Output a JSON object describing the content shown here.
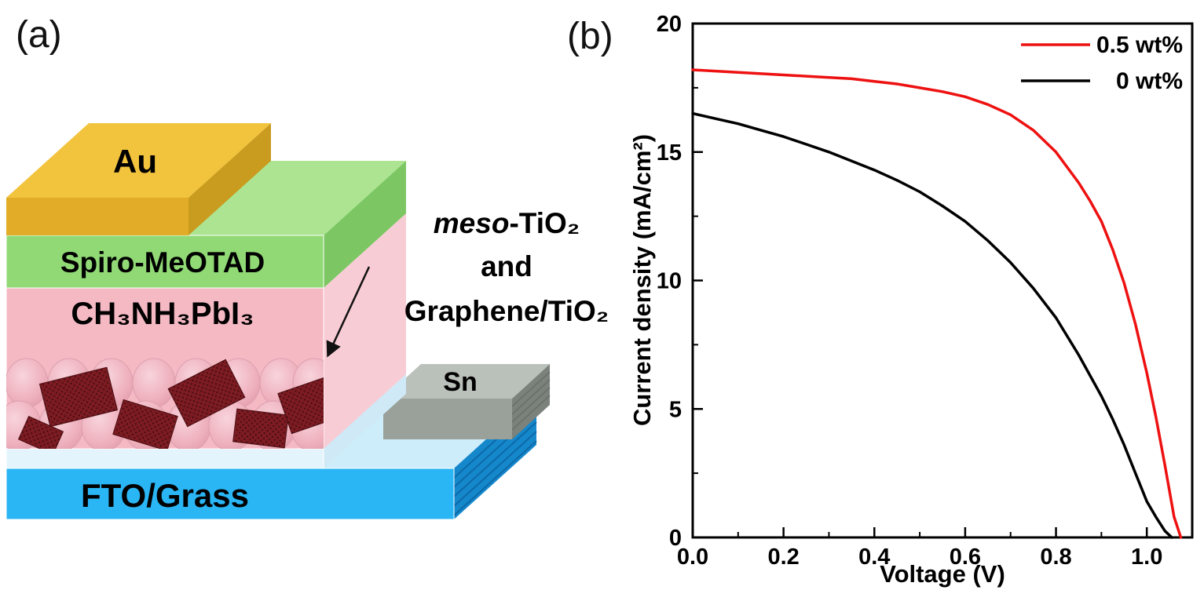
{
  "panels": {
    "a_label": "(a)",
    "b_label": "(b)"
  },
  "diagram": {
    "labels": {
      "au": "Au",
      "spiro": "Spiro-MeOTAD",
      "perovskite": "CH₃NH₃PbI₃",
      "sn": "Sn",
      "fto": "FTO/Grass"
    },
    "annotation": {
      "meso": "meso",
      "meso_rest": "-TiO₂",
      "and": "and",
      "graphene": "Graphene/TiO₂"
    },
    "colors": {
      "au_top": "#F2C33C",
      "au_front": "#E3AC28",
      "au_side": "#C99B1E",
      "spiro_top": "#ACE491",
      "spiro_front": "#90D975",
      "spiro_side": "#7CC763",
      "perovskite_front": "#F5B9C4",
      "perovskite_side": "#F8CCD5",
      "sphere": "#EDAEBB",
      "flake": "#7D1C22",
      "compact_layer": "#E3F4FC",
      "fto_front": "#2AB5F4",
      "fto_top": "#CDEDFB",
      "fto_side": "#1587CB",
      "fto_label_color": "#14266B",
      "sn_top": "#BAC0BA",
      "sn_front": "#9AA19A",
      "sn_side": "#7B827B"
    }
  },
  "chart_data": {
    "type": "line",
    "title": "",
    "xlabel": "Voltage (V)",
    "ylabel": "Current density (mA/cm²)",
    "xlim": [
      0,
      1.1
    ],
    "ylim": [
      0,
      20
    ],
    "x_major_step": 0.2,
    "x_minor_step": 0.1,
    "y_major_step": 5,
    "y_minor_step": 2.5,
    "x_ticks": [
      0.0,
      0.2,
      0.4,
      0.6,
      0.8,
      1.0
    ],
    "x_tick_labels": [
      "0.0",
      "0.2",
      "0.4",
      "0.6",
      "0.8",
      "1.0"
    ],
    "y_ticks": [
      0,
      5,
      10,
      15,
      20
    ],
    "y_tick_labels": [
      "0",
      "5",
      "10",
      "15",
      "20"
    ],
    "grid": false,
    "legend_position": "top-right",
    "series": [
      {
        "name": "0.5 wt%",
        "color": "#EE1111",
        "x": [
          0,
          0.05,
          0.1,
          0.15,
          0.2,
          0.25,
          0.3,
          0.35,
          0.4,
          0.45,
          0.5,
          0.55,
          0.6,
          0.65,
          0.7,
          0.75,
          0.8,
          0.85,
          0.875,
          0.9,
          0.925,
          0.95,
          0.975,
          1.0,
          1.02,
          1.04,
          1.06,
          1.075
        ],
        "y": [
          18.2,
          18.15,
          18.1,
          18.05,
          18.0,
          17.95,
          17.9,
          17.85,
          17.75,
          17.65,
          17.5,
          17.35,
          17.15,
          16.85,
          16.45,
          15.85,
          15.0,
          13.8,
          13.1,
          12.3,
          11.2,
          9.9,
          8.3,
          6.4,
          4.7,
          2.8,
          0.8,
          0
        ]
      },
      {
        "name": "0 wt%",
        "color": "#000000",
        "x": [
          0,
          0.05,
          0.1,
          0.15,
          0.2,
          0.25,
          0.3,
          0.35,
          0.4,
          0.45,
          0.5,
          0.55,
          0.6,
          0.65,
          0.7,
          0.75,
          0.8,
          0.85,
          0.9,
          0.925,
          0.95,
          0.975,
          1.0,
          1.02,
          1.04,
          1.055
        ],
        "y": [
          16.5,
          16.3,
          16.1,
          15.85,
          15.6,
          15.3,
          15.0,
          14.65,
          14.3,
          13.9,
          13.45,
          12.9,
          12.3,
          11.55,
          10.7,
          9.7,
          8.55,
          7.1,
          5.5,
          4.6,
          3.6,
          2.5,
          1.4,
          0.8,
          0.25,
          0
        ]
      }
    ]
  }
}
